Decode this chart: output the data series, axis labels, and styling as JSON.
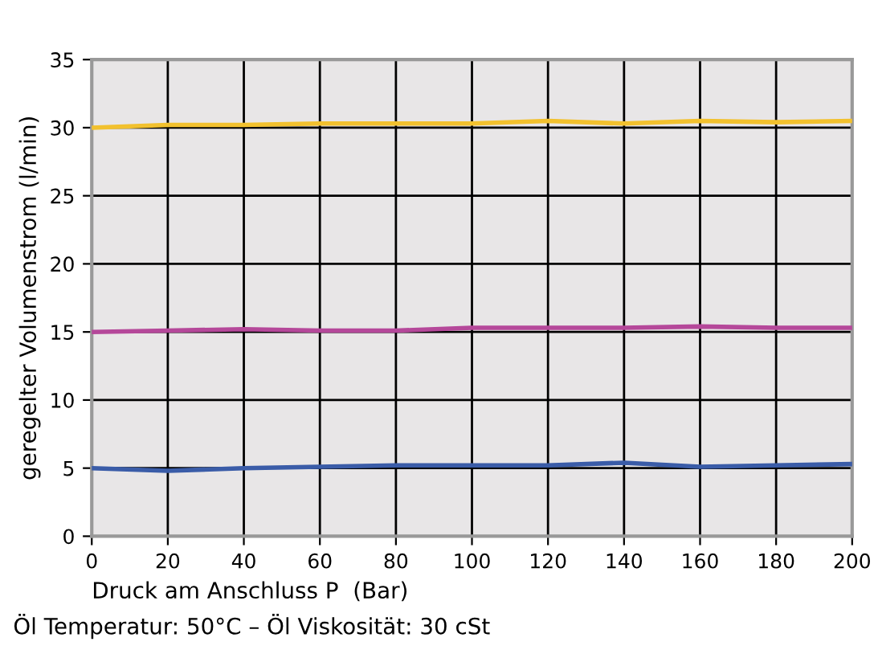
{
  "chart_data": {
    "type": "line",
    "xlabel": "Druck am Anschluss P  (Bar)",
    "ylabel": "geregelter Volumenstrom (l/min)",
    "x": [
      0,
      20,
      40,
      60,
      80,
      100,
      120,
      140,
      160,
      180,
      200
    ],
    "series": [
      {
        "color": "#f2c12e",
        "values": [
          30,
          30.2,
          30.2,
          30.3,
          30.3,
          30.3,
          30.5,
          30.3,
          30.5,
          30.4,
          30.5
        ]
      },
      {
        "color": "#b5489a",
        "values": [
          15,
          15.1,
          15.2,
          15.1,
          15.1,
          15.3,
          15.3,
          15.3,
          15.4,
          15.3,
          15.3
        ]
      },
      {
        "color": "#3a5ca8",
        "values": [
          5,
          4.8,
          5,
          5.1,
          5.2,
          5.2,
          5.2,
          5.4,
          5.1,
          5.2,
          5.3
        ]
      }
    ],
    "xlim": [
      0,
      200
    ],
    "xticks": [
      0,
      20,
      40,
      60,
      80,
      100,
      120,
      140,
      160,
      180,
      200
    ],
    "ylim": [
      0,
      35
    ],
    "yticks": [
      0,
      5,
      10,
      15,
      20,
      25,
      30,
      35
    ],
    "grid": true,
    "marker": "none",
    "line_style": "solid",
    "annotations": [
      "Öl Temperatur: 50°C – Öl Viskosität: 30 cSt"
    ]
  }
}
